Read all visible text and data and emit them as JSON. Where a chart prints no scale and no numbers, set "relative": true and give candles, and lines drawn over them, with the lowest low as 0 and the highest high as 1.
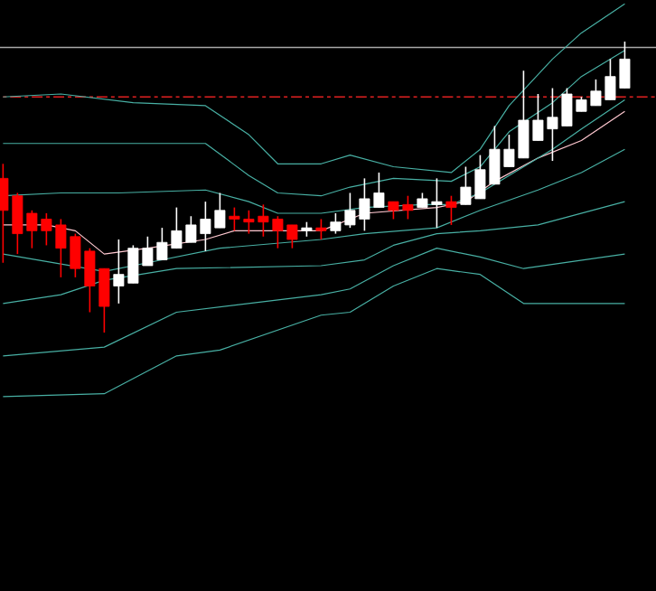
{
  "chart_data": {
    "type": "candlestick",
    "relative": true,
    "categories": [
      null,
      null,
      null,
      null,
      null,
      null,
      null,
      null,
      null,
      null,
      null,
      null,
      null,
      null,
      null,
      null,
      null,
      null,
      null,
      null,
      null,
      null,
      null,
      null,
      null,
      null,
      null,
      null,
      null,
      null,
      null,
      null,
      null,
      null,
      null,
      null,
      null,
      null,
      null,
      null,
      null,
      null,
      null,
      null
    ],
    "ohlc": [
      [
        0.53,
        0.58,
        0.24,
        0.42
      ],
      [
        0.47,
        0.48,
        0.27,
        0.34
      ],
      [
        0.41,
        0.42,
        0.29,
        0.35
      ],
      [
        0.39,
        0.41,
        0.3,
        0.35
      ],
      [
        0.37,
        0.39,
        0.19,
        0.29
      ],
      [
        0.33,
        0.34,
        0.19,
        0.22
      ],
      [
        0.28,
        0.29,
        0.07,
        0.16
      ],
      [
        0.22,
        0.22,
        0,
        0.09
      ],
      [
        0.16,
        0.32,
        0.1,
        0.2
      ],
      [
        0.17,
        0.3,
        0.17,
        0.29
      ],
      [
        0.23,
        0.33,
        0.23,
        0.29
      ],
      [
        0.25,
        0.36,
        0.25,
        0.31
      ],
      [
        0.29,
        0.43,
        0.29,
        0.35
      ],
      [
        0.31,
        0.4,
        0.31,
        0.37
      ],
      [
        0.34,
        0.45,
        0.28,
        0.39
      ],
      [
        0.36,
        0.48,
        0.36,
        0.42
      ],
      [
        0.4,
        0.43,
        0.35,
        0.39
      ],
      [
        0.39,
        0.42,
        0.34,
        0.38
      ],
      [
        0.4,
        0.44,
        0.33,
        0.38
      ],
      [
        0.39,
        0.4,
        0.29,
        0.35
      ],
      [
        0.37,
        0.37,
        0.29,
        0.32
      ],
      [
        0.35,
        0.38,
        0.33,
        0.36
      ],
      [
        0.36,
        0.39,
        0.32,
        0.35
      ],
      [
        0.35,
        0.41,
        0.34,
        0.38
      ],
      [
        0.37,
        0.48,
        0.36,
        0.42
      ],
      [
        0.39,
        0.53,
        0.35,
        0.46
      ],
      [
        0.43,
        0.55,
        0.43,
        0.48
      ],
      [
        0.45,
        0.45,
        0.39,
        0.42
      ],
      [
        0.44,
        0.47,
        0.39,
        0.42
      ],
      [
        0.43,
        0.48,
        0.43,
        0.46
      ],
      [
        0.44,
        0.53,
        0.36,
        0.45
      ],
      [
        0.45,
        0.47,
        0.37,
        0.43
      ],
      [
        0.44,
        0.57,
        0.44,
        0.5
      ],
      [
        0.46,
        0.61,
        0.46,
        0.56
      ],
      [
        0.51,
        0.71,
        0.51,
        0.63
      ],
      [
        0.57,
        0.68,
        0.57,
        0.63
      ],
      [
        0.6,
        0.9,
        0.6,
        0.73
      ],
      [
        0.66,
        0.82,
        0.66,
        0.73
      ],
      [
        0.7,
        0.84,
        0.59,
        0.74
      ],
      [
        0.71,
        0.84,
        0.71,
        0.82
      ],
      [
        0.76,
        0.81,
        0.76,
        0.8
      ],
      [
        0.78,
        0.87,
        0.78,
        0.83
      ],
      [
        0.8,
        0.94,
        0.8,
        0.88
      ],
      [
        0.84,
        1.0,
        0.84,
        0.94
      ]
    ],
    "colors": [
      "#ff0000",
      "#ff0000",
      "#ff0000",
      "#ff0000",
      "#ff0000",
      "#ff0000",
      "#ff0000",
      "#ff0000",
      "#ffffff",
      "#ffffff",
      "#ffffff",
      "#ffffff",
      "#ffffff",
      "#ffffff",
      "#ffffff",
      "#ffffff",
      "#ff0000",
      "#ff0000",
      "#ff0000",
      "#ff0000",
      "#ff0000",
      "#ffffff",
      "#ff0000",
      "#ffffff",
      "#ffffff",
      "#ffffff",
      "#ffffff",
      "#ff0000",
      "#ff0000",
      "#ffffff",
      "#ffffff",
      "#ff0000",
      "#ffffff",
      "#ffffff",
      "#ffffff",
      "#ffffff",
      "#ffffff",
      "#ffffff",
      "#ffffff",
      "#ffffff",
      "#ffffff",
      "#ffffff",
      "#ffffff",
      "#ffffff"
    ],
    "series": [
      {
        "type": "line",
        "color": "#ffc8d0",
        "values": [
          0.37,
          null,
          null,
          0.37,
          null,
          0.35,
          null,
          0.27,
          null,
          null,
          0.29,
          null,
          null,
          null,
          0.32,
          null,
          0.35,
          null,
          null,
          null,
          null,
          null,
          0.35,
          null,
          null,
          0.41,
          null,
          null,
          null,
          null,
          0.43,
          null,
          0.45,
          null,
          0.52,
          null,
          null,
          0.6,
          null,
          null,
          0.66,
          null,
          null,
          0.76
        ]
      },
      {
        "type": "line",
        "color": "#48b0a4",
        "values": [
          0.81,
          null,
          null,
          null,
          0.82,
          null,
          null,
          null,
          null,
          0.79,
          null,
          null,
          null,
          null,
          0.78,
          null,
          null,
          0.68,
          null,
          0.58,
          null,
          null,
          0.58,
          null,
          0.61,
          null,
          null,
          0.57,
          null,
          null,
          null,
          0.55,
          null,
          0.63,
          null,
          0.78,
          null,
          null,
          0.94,
          null,
          1.03,
          null,
          null,
          1.13
        ]
      },
      {
        "type": "line",
        "color": "#48b0a4",
        "values": [
          0.65,
          null,
          null,
          null,
          0.65,
          null,
          null,
          null,
          0.65,
          null,
          null,
          null,
          null,
          null,
          0.65,
          null,
          null,
          0.54,
          null,
          0.48,
          null,
          null,
          0.47,
          null,
          0.5,
          null,
          null,
          0.53,
          null,
          null,
          null,
          0.52,
          null,
          0.57,
          null,
          0.69,
          null,
          null,
          0.79,
          null,
          0.88,
          null,
          null,
          0.97
        ]
      },
      {
        "type": "line",
        "color": "#48b0a4",
        "values": [
          0.47,
          null,
          null,
          null,
          0.48,
          null,
          null,
          null,
          0.48,
          null,
          null,
          null,
          null,
          null,
          0.49,
          null,
          null,
          0.45,
          null,
          0.41,
          null,
          null,
          0.41,
          null,
          null,
          0.43,
          null,
          null,
          null,
          0.44,
          null,
          0.44,
          null,
          0.48,
          null,
          0.54,
          null,
          null,
          0.63,
          null,
          0.7,
          null,
          null,
          0.8
        ]
      },
      {
        "type": "line",
        "color": "#48b0a4",
        "values": [
          0.27,
          null,
          null,
          null,
          null,
          null,
          null,
          0.21,
          null,
          null,
          0.24,
          null,
          null,
          null,
          null,
          0.29,
          null,
          null,
          null,
          null,
          null,
          null,
          0.32,
          null,
          null,
          0.34,
          null,
          null,
          null,
          null,
          0.36,
          null,
          null,
          0.42,
          null,
          null,
          null,
          0.49,
          null,
          null,
          0.55,
          null,
          null,
          0.63
        ]
      },
      {
        "type": "line",
        "color": "#48b0a4",
        "values": [
          0.1,
          null,
          null,
          null,
          0.13,
          null,
          null,
          0.18,
          null,
          null,
          null,
          null,
          0.22,
          null,
          null,
          null,
          null,
          null,
          null,
          null,
          null,
          null,
          0.23,
          null,
          null,
          0.25,
          null,
          0.3,
          null,
          null,
          0.34,
          null,
          null,
          0.35,
          null,
          null,
          null,
          0.37,
          null,
          null,
          null,
          null,
          null,
          0.45
        ]
      },
      {
        "type": "line",
        "color": "#48b0a4",
        "values": [
          -0.08,
          null,
          null,
          null,
          null,
          null,
          null,
          -0.05,
          null,
          null,
          null,
          null,
          0.07,
          null,
          null,
          null,
          null,
          null,
          null,
          null,
          null,
          null,
          0.13,
          null,
          0.15,
          null,
          null,
          0.23,
          null,
          null,
          0.29,
          null,
          null,
          0.26,
          null,
          null,
          0.22,
          null,
          null,
          null,
          null,
          null,
          null,
          0.27
        ]
      },
      {
        "type": "line",
        "color": "#48b0a4",
        "values": [
          -0.22,
          null,
          null,
          null,
          null,
          null,
          null,
          -0.21,
          null,
          null,
          null,
          null,
          -0.08,
          null,
          null,
          -0.06,
          null,
          null,
          null,
          null,
          null,
          null,
          0.06,
          null,
          0.07,
          null,
          null,
          0.16,
          null,
          null,
          0.22,
          null,
          null,
          0.2,
          null,
          null,
          0.1,
          null,
          null,
          null,
          null,
          null,
          null,
          0.1
        ]
      }
    ],
    "ref_lines": [
      {
        "axis": "y",
        "value": 0.98,
        "color": "#a8a8a8",
        "line_style": "solid"
      },
      {
        "axis": "y",
        "value": 0.81,
        "color": "#e02020",
        "line_style": "dashdot"
      }
    ]
  }
}
